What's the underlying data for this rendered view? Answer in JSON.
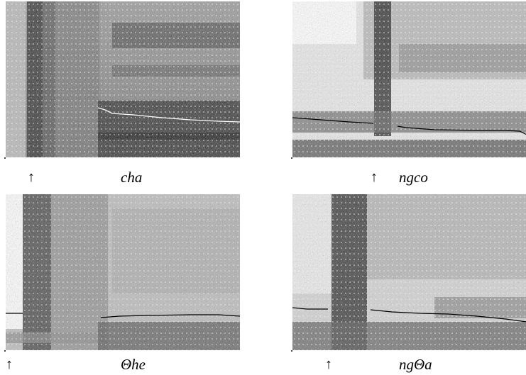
{
  "figure": {
    "panels": [
      {
        "id": "cha",
        "caption": "cha",
        "arrow": "↑",
        "contour_color": "#ffffff"
      },
      {
        "id": "ngco",
        "caption": "ngco",
        "arrow": "↑",
        "contour_color": "#000000"
      },
      {
        "id": "the",
        "caption": "Θhe",
        "arrow": "↑",
        "contour_color": "#000000"
      },
      {
        "id": "ngta",
        "caption": "ngΘa",
        "arrow": "↑",
        "contour_color": "#000000"
      }
    ]
  }
}
